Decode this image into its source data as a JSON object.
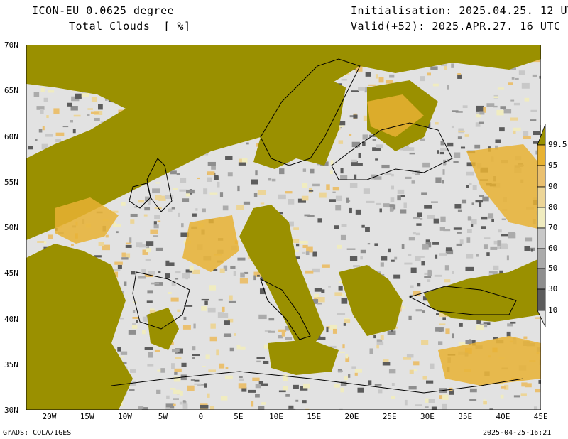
{
  "header": {
    "model": "ICON-EU 0.0625 degree",
    "variable": "Total Clouds  [ %]",
    "init": "Initialisation: 2025.04.25. 12 UTC",
    "valid": "Valid(+52): 2025.APR.27. 16 UTC"
  },
  "lat_labels": [
    "70N",
    "65N",
    "60N",
    "55N",
    "50N",
    "45N",
    "40N",
    "35N",
    "30N"
  ],
  "lon_labels": [
    "20W",
    "15W",
    "10W",
    "5W",
    "0",
    "5E",
    "10E",
    "15E",
    "20E",
    "25E",
    "30E",
    "35E",
    "40E",
    "45E"
  ],
  "colorbar": {
    "labels": [
      "99.5",
      "95",
      "90",
      "80",
      "70",
      "60",
      "50",
      "30",
      "10"
    ],
    "colors": {
      "below_10": "#e2e2e2",
      "10_30": "#5c5c5c",
      "30_50": "#8e8e8e",
      "50_60": "#ababab",
      "60_70": "#c8c8c8",
      "70_80": "#f0ecc0",
      "80_90": "#ecd598",
      "90_95": "#eac070",
      "95_99_5": "#e8b232",
      "above_99_5": "#9a9000"
    }
  },
  "footer": {
    "left": "GrADS: COLA/IGES",
    "right": "2025-04-25-16:21"
  }
}
